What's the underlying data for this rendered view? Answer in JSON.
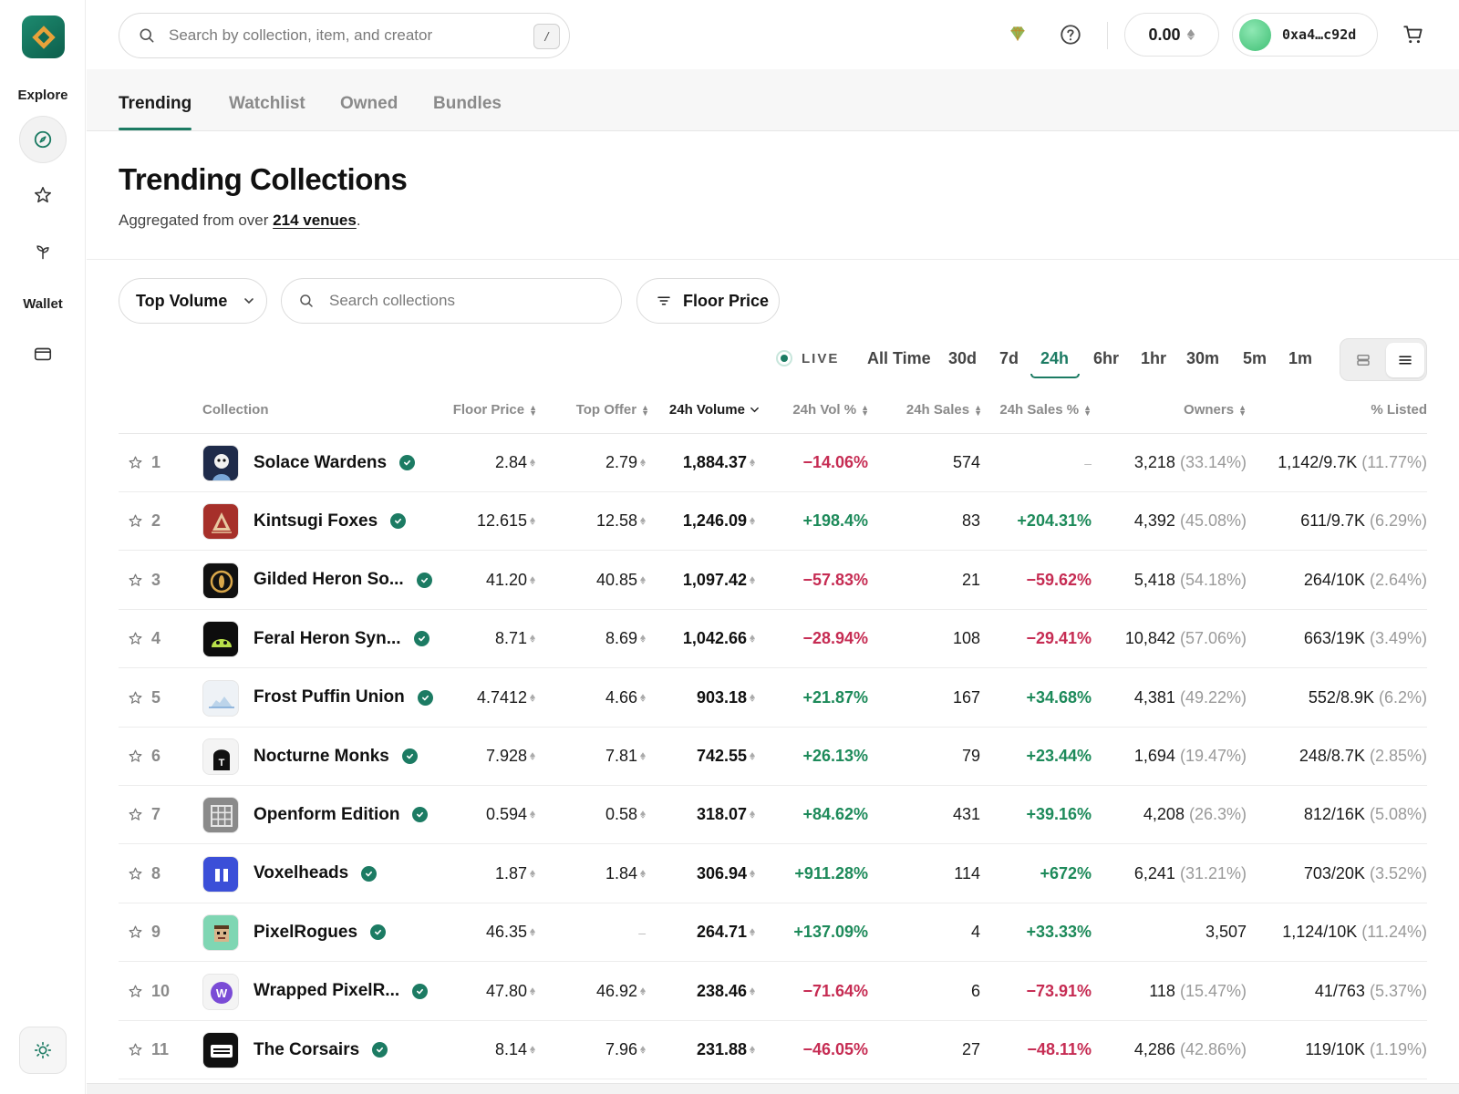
{
  "sidebar": {
    "explore_label": "Explore",
    "wallet_label": "Wallet"
  },
  "topbar": {
    "search_placeholder": "Search by collection, item, and creator",
    "search_shortcut": "/",
    "balance": "0.00",
    "wallet_address": "0xa4…c92d"
  },
  "tabs": [
    "Trending",
    "Watchlist",
    "Owned",
    "Bundles"
  ],
  "page": {
    "title": "Trending Collections",
    "subtitle_prefix": "Aggregated from over ",
    "subtitle_link": "214 venues",
    "subtitle_suffix": "."
  },
  "filters": {
    "sort_label": "Top Volume",
    "collection_search_placeholder": "Search collections",
    "floor_price_label": "Floor Price"
  },
  "time_ranges": {
    "live_label": "LIVE",
    "options": [
      "All Time",
      "30d",
      "7d",
      "24h",
      "6hr",
      "1hr",
      "30m",
      "5m",
      "1m"
    ],
    "selected": "24h"
  },
  "table": {
    "headers": {
      "collection": "Collection",
      "floor_price": "Floor Price",
      "top_offer": "Top Offer",
      "volume": "24h Volume",
      "vol_pct": "24h Vol %",
      "sales": "24h Sales",
      "sales_pct": "24h Sales %",
      "owners": "Owners",
      "listed": "% Listed"
    },
    "rows": [
      {
        "rank": "1",
        "name": "Solace Wardens",
        "floor": "2.84",
        "offer": "2.79",
        "volume": "1,884.37",
        "vol_pct": "−14.06%",
        "vol_dir": "neg",
        "sales": "574",
        "sales_pct": "–",
        "sales_dir": "none",
        "owners": "3,218",
        "owners_pct": "(33.14%)",
        "listed": "1,142/9.7K",
        "listed_pct": "(11.77%)",
        "thumb_bg": "#1f2b4a",
        "thumb_icon": "ghost-face"
      },
      {
        "rank": "2",
        "name": "Kintsugi Foxes",
        "floor": "12.615",
        "offer": "12.58",
        "volume": "1,246.09",
        "vol_pct": "+198.4%",
        "vol_dir": "pos",
        "sales": "83",
        "sales_pct": "+204.31%",
        "sales_dir": "pos",
        "owners": "4,392",
        "owners_pct": "(45.08%)",
        "listed": "611/9.7K",
        "listed_pct": "(6.29%)",
        "thumb_bg": "#a6302a",
        "thumb_icon": "triangle"
      },
      {
        "rank": "3",
        "name": "Gilded Heron So...",
        "floor": "41.20",
        "offer": "40.85",
        "volume": "1,097.42",
        "vol_pct": "−57.83%",
        "vol_dir": "neg",
        "sales": "21",
        "sales_pct": "−59.62%",
        "sales_dir": "neg",
        "owners": "5,418",
        "owners_pct": "(54.18%)",
        "listed": "264/10K",
        "listed_pct": "(2.64%)",
        "thumb_bg": "#111111",
        "thumb_icon": "gold-ring"
      },
      {
        "rank": "4",
        "name": "Feral Heron Syn...",
        "floor": "8.71",
        "offer": "8.69",
        "volume": "1,042.66",
        "vol_pct": "−28.94%",
        "vol_dir": "neg",
        "sales": "108",
        "sales_pct": "−29.41%",
        "sales_dir": "neg",
        "owners": "10,842",
        "owners_pct": "(57.06%)",
        "listed": "663/19K",
        "listed_pct": "(3.49%)",
        "thumb_bg": "#0d0d0d",
        "thumb_icon": "green-creature"
      },
      {
        "rank": "5",
        "name": "Frost Puffin Union",
        "floor": "4.7412",
        "offer": "4.66",
        "volume": "903.18",
        "vol_pct": "+21.87%",
        "vol_dir": "pos",
        "sales": "167",
        "sales_pct": "+34.68%",
        "sales_dir": "pos",
        "owners": "4,381",
        "owners_pct": "(49.22%)",
        "listed": "552/8.9K",
        "listed_pct": "(6.2%)",
        "thumb_bg": "#eef2f6",
        "thumb_icon": "iceberg"
      },
      {
        "rank": "6",
        "name": "Nocturne Monks",
        "floor": "7.928",
        "offer": "7.81",
        "volume": "742.55",
        "vol_pct": "+26.13%",
        "vol_dir": "pos",
        "sales": "79",
        "sales_pct": "+23.44%",
        "sales_dir": "pos",
        "owners": "1,694",
        "owners_pct": "(19.47%)",
        "listed": "248/8.7K",
        "listed_pct": "(2.85%)",
        "thumb_bg": "#f4f4f4",
        "thumb_icon": "tombstone"
      },
      {
        "rank": "7",
        "name": "Openform Edition",
        "floor": "0.594",
        "offer": "0.58",
        "volume": "318.07",
        "vol_pct": "+84.62%",
        "vol_dir": "pos",
        "sales": "431",
        "sales_pct": "+39.16%",
        "sales_dir": "pos",
        "owners": "4,208",
        "owners_pct": "(26.3%)",
        "listed": "812/16K",
        "listed_pct": "(5.08%)",
        "thumb_bg": "#8a8a8a",
        "thumb_icon": "grid"
      },
      {
        "rank": "8",
        "name": "Voxelheads",
        "floor": "1.87",
        "offer": "1.84",
        "volume": "306.94",
        "vol_pct": "+911.28%",
        "vol_dir": "pos",
        "sales": "114",
        "sales_pct": "+672%",
        "sales_dir": "pos",
        "owners": "6,241",
        "owners_pct": "(31.21%)",
        "listed": "703/20K",
        "listed_pct": "(3.52%)",
        "thumb_bg": "#3b4fd8",
        "thumb_icon": "pause-bars"
      },
      {
        "rank": "9",
        "name": "PixelRogues",
        "floor": "46.35",
        "offer": "–",
        "volume": "264.71",
        "vol_pct": "+137.09%",
        "vol_dir": "pos",
        "sales": "4",
        "sales_pct": "+33.33%",
        "sales_dir": "pos",
        "owners": "3,507",
        "owners_pct": "",
        "listed": "1,124/10K",
        "listed_pct": "(11.24%)",
        "thumb_bg": "#7fd6b3",
        "thumb_icon": "pixel-face"
      },
      {
        "rank": "10",
        "name": "Wrapped PixelR...",
        "floor": "47.80",
        "offer": "46.92",
        "volume": "238.46",
        "vol_pct": "−71.64%",
        "vol_dir": "neg",
        "sales": "6",
        "sales_pct": "−73.91%",
        "sales_dir": "neg",
        "owners": "118",
        "owners_pct": "(15.47%)",
        "listed": "41/763",
        "listed_pct": "(5.37%)",
        "thumb_bg": "#f4f4f4",
        "thumb_icon": "w-badge"
      },
      {
        "rank": "11",
        "name": "The Corsairs",
        "floor": "8.14",
        "offer": "7.96",
        "volume": "231.88",
        "vol_pct": "−46.05%",
        "vol_dir": "neg",
        "sales": "27",
        "sales_pct": "−48.11%",
        "sales_dir": "neg",
        "owners": "4,286",
        "owners_pct": "(42.86%)",
        "listed": "119/10K",
        "listed_pct": "(1.19%)",
        "thumb_bg": "#111111",
        "thumb_icon": "bars-card"
      }
    ]
  },
  "colors": {
    "accent": "#1c7b63",
    "positive": "#1d8a5a",
    "negative": "#c62c53"
  }
}
